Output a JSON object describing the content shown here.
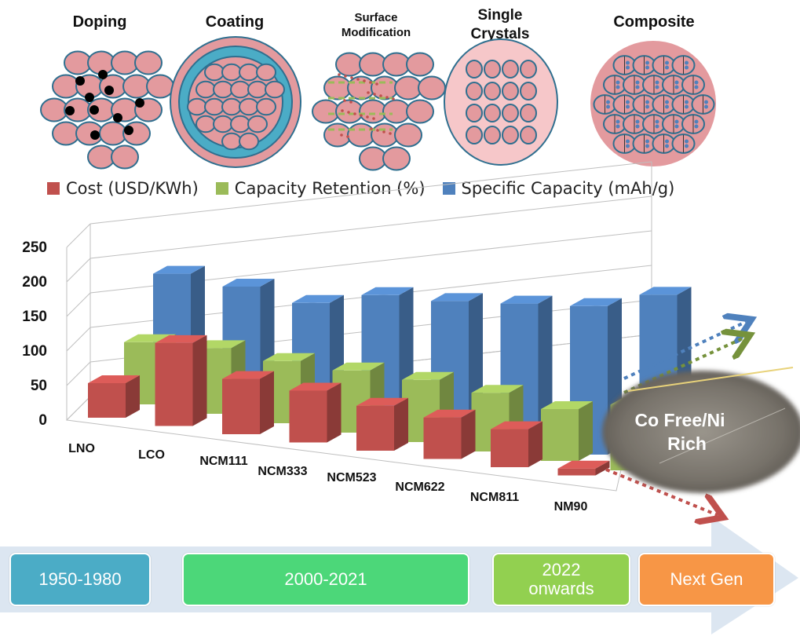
{
  "panels": [
    {
      "title_lines": [
        "Doping"
      ],
      "style": "doping"
    },
    {
      "title_lines": [
        "Coating"
      ],
      "style": "coating"
    },
    {
      "title_lines": [
        "Surface",
        "Modification"
      ],
      "style": "surface"
    },
    {
      "title_lines": [
        "Single",
        "Crystals"
      ],
      "style": "single"
    },
    {
      "title_lines": [
        "Composite"
      ],
      "style": "composite"
    }
  ],
  "chart_data": {
    "type": "bar",
    "title": "",
    "categories": [
      "LNO",
      "LCO",
      "NCM111",
      "NCM333",
      "NCM523",
      "NCM622",
      "NCM811",
      "NM90"
    ],
    "series": [
      {
        "name": "Cost (USD/KWh)",
        "color": "#c0504d",
        "values": [
          50,
          120,
          80,
          75,
          65,
          60,
          55,
          10
        ]
      },
      {
        "name": "Capacity Retention (%)",
        "color": "#9bbb59",
        "values": [
          90,
          95,
          90,
          90,
          90,
          85,
          75,
          95
        ]
      },
      {
        "name": "Specific Capacity (mAh/g)",
        "color": "#4f81bd",
        "values": [
          180,
          175,
          165,
          190,
          195,
          205,
          215,
          245
        ]
      }
    ],
    "y_ticks": [
      "250",
      "200",
      "150",
      "100",
      "50",
      "0"
    ],
    "ylim": [
      0,
      250
    ],
    "legend_position": "top",
    "grid": true
  },
  "callout": {
    "lines": [
      "Co Free/Ni",
      "Rich"
    ]
  },
  "timeline": [
    {
      "label_lines": [
        "1950-1980"
      ],
      "color": "#4bacc6"
    },
    {
      "label_lines": [
        "2000-2021"
      ],
      "color": "#4cd779"
    },
    {
      "label_lines": [
        "2022",
        "onwards"
      ],
      "color": "#92d050"
    },
    {
      "label_lines": [
        "Next Gen"
      ],
      "color": "#f79646"
    }
  ]
}
